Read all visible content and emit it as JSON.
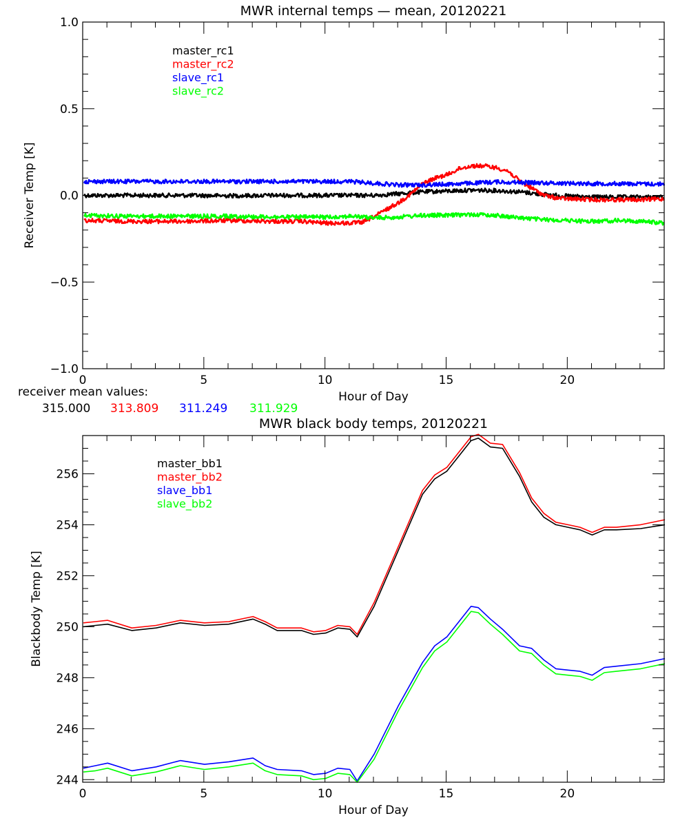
{
  "chart_data": [
    {
      "type": "line",
      "title": "MWR internal temps — mean, 20120221",
      "xlabel": "Hour of Day",
      "ylabel": "Receiver Temp [K]",
      "xlim": [
        0,
        24
      ],
      "ylim": [
        -1.0,
        1.0
      ],
      "xticks": [
        0,
        5,
        10,
        15,
        20
      ],
      "xtick_labels": [
        "0",
        "5",
        "10",
        "15",
        "20"
      ],
      "yticks": [
        -1.0,
        -0.5,
        0.0,
        0.5,
        1.0
      ],
      "ytick_labels": [
        "−1.0",
        "−0.5",
        "0.0",
        "0.5",
        "1.0"
      ],
      "grid": false,
      "legend_position": "top-left",
      "noisy": true,
      "series": [
        {
          "name": "master_rc1",
          "color": "#000000",
          "x": [
            0,
            2,
            4,
            6,
            8,
            10,
            11,
            12,
            13,
            14,
            15,
            16,
            17,
            18,
            19,
            20,
            21,
            22,
            23,
            24
          ],
          "y": [
            0.0,
            0.0,
            0.0,
            -0.002,
            0.0,
            0.0,
            0.0,
            0.0,
            0.01,
            0.02,
            0.025,
            0.03,
            0.028,
            0.02,
            0.005,
            -0.005,
            -0.01,
            -0.01,
            -0.01,
            -0.01
          ]
        },
        {
          "name": "master_rc2",
          "color": "#ff0000",
          "x": [
            0,
            2,
            4,
            6,
            8,
            9,
            10,
            11,
            11.5,
            12,
            12.5,
            13,
            13.5,
            14,
            14.5,
            15,
            15.5,
            16,
            16.5,
            17,
            17.5,
            18,
            18.5,
            19,
            19.5,
            20,
            21,
            22,
            23,
            24
          ],
          "y": [
            -0.145,
            -0.15,
            -0.15,
            -0.145,
            -0.15,
            -0.15,
            -0.16,
            -0.16,
            -0.155,
            -0.12,
            -0.08,
            -0.04,
            0.01,
            0.07,
            0.1,
            0.12,
            0.155,
            0.17,
            0.17,
            0.16,
            0.14,
            0.08,
            0.04,
            0.0,
            -0.015,
            -0.02,
            -0.025,
            -0.025,
            -0.025,
            -0.02
          ]
        },
        {
          "name": "slave_rc1",
          "color": "#0000ff",
          "x": [
            0,
            2,
            4,
            6,
            8,
            10,
            11,
            12,
            13,
            14,
            15,
            16,
            17,
            18,
            19,
            20,
            21,
            22,
            23,
            24
          ],
          "y": [
            0.08,
            0.08,
            0.08,
            0.08,
            0.08,
            0.08,
            0.08,
            0.07,
            0.06,
            0.06,
            0.065,
            0.07,
            0.078,
            0.075,
            0.072,
            0.07,
            0.068,
            0.068,
            0.066,
            0.065
          ]
        },
        {
          "name": "slave_rc2",
          "color": "#00ff00",
          "x": [
            0,
            2,
            4,
            6,
            8,
            10,
            11,
            12,
            13,
            14,
            15,
            16,
            17,
            18,
            19,
            20,
            21,
            22,
            23,
            24
          ],
          "y": [
            -0.115,
            -0.12,
            -0.12,
            -0.12,
            -0.125,
            -0.125,
            -0.12,
            -0.13,
            -0.125,
            -0.115,
            -0.115,
            -0.11,
            -0.115,
            -0.13,
            -0.14,
            -0.145,
            -0.15,
            -0.145,
            -0.15,
            -0.16
          ]
        }
      ],
      "annotation": {
        "label": "receiver mean values:",
        "values": [
          {
            "text": "315.000",
            "color": "#000000"
          },
          {
            "text": "313.809",
            "color": "#ff0000"
          },
          {
            "text": "311.249",
            "color": "#0000ff"
          },
          {
            "text": "311.929",
            "color": "#00ff00"
          }
        ]
      }
    },
    {
      "type": "line",
      "title": "MWR black body temps, 20120221",
      "xlabel": "Hour of Day",
      "ylabel": "Blackbody Temp [K]",
      "xlim": [
        0,
        24
      ],
      "ylim": [
        243.9,
        257.5
      ],
      "xticks": [
        0,
        5,
        10,
        15,
        20
      ],
      "xtick_labels": [
        "0",
        "5",
        "10",
        "15",
        "20"
      ],
      "yticks": [
        244,
        246,
        248,
        250,
        252,
        254,
        256
      ],
      "ytick_labels": [
        "244",
        "246",
        "248",
        "250",
        "252",
        "254",
        "256"
      ],
      "grid": false,
      "legend_position": "top-left",
      "noisy": false,
      "series": [
        {
          "name": "master_bb1",
          "color": "#000000",
          "x": [
            0,
            0.5,
            1,
            2,
            3,
            4,
            5,
            6,
            7,
            7.5,
            8,
            9,
            9.5,
            10,
            10.5,
            11,
            11.3,
            12,
            13,
            14,
            14.5,
            15,
            15.5,
            16,
            16.3,
            16.8,
            17.3,
            18,
            18.5,
            19,
            19.5,
            20,
            20.5,
            21,
            21.5,
            22,
            23,
            24
          ],
          "y": [
            250.0,
            250.05,
            250.1,
            249.85,
            249.95,
            250.15,
            250.05,
            250.1,
            250.3,
            250.1,
            249.85,
            249.85,
            249.7,
            249.75,
            249.95,
            249.9,
            249.6,
            250.8,
            253.0,
            255.2,
            255.8,
            256.1,
            256.7,
            257.3,
            257.4,
            257.05,
            257.0,
            255.9,
            254.9,
            254.3,
            254.0,
            253.9,
            253.8,
            253.6,
            253.8,
            253.8,
            253.85,
            254.0
          ]
        },
        {
          "name": "master_bb2",
          "color": "#ff0000",
          "x": [
            0,
            0.5,
            1,
            2,
            3,
            4,
            5,
            6,
            7,
            7.5,
            8,
            9,
            9.5,
            10,
            10.5,
            11,
            11.3,
            12,
            13,
            14,
            14.5,
            15,
            15.5,
            16,
            16.3,
            16.8,
            17.3,
            18,
            18.5,
            19,
            19.5,
            20,
            20.5,
            21,
            21.5,
            22,
            23,
            24
          ],
          "y": [
            250.15,
            250.2,
            250.25,
            249.95,
            250.05,
            250.25,
            250.15,
            250.2,
            250.4,
            250.2,
            249.95,
            249.95,
            249.8,
            249.85,
            250.05,
            250.0,
            249.7,
            250.95,
            253.15,
            255.35,
            255.95,
            256.25,
            256.85,
            257.45,
            257.55,
            257.2,
            257.15,
            256.05,
            255.05,
            254.45,
            254.1,
            254.0,
            253.9,
            253.7,
            253.9,
            253.9,
            254.0,
            254.2
          ]
        },
        {
          "name": "slave_bb1",
          "color": "#0000ff",
          "x": [
            0,
            0.5,
            1,
            2,
            3,
            4,
            5,
            6,
            7,
            7.5,
            8,
            9,
            9.5,
            10,
            10.5,
            11,
            11.3,
            12,
            13,
            14,
            14.5,
            15,
            15.5,
            16,
            16.3,
            16.8,
            17.3,
            18,
            18.5,
            19,
            19.5,
            20,
            20.5,
            21,
            21.5,
            22,
            23,
            24
          ],
          "y": [
            244.45,
            244.55,
            244.65,
            244.35,
            244.5,
            244.75,
            244.6,
            244.7,
            244.85,
            244.55,
            244.4,
            244.35,
            244.2,
            244.25,
            244.45,
            244.4,
            243.95,
            245.0,
            246.9,
            248.6,
            249.25,
            249.6,
            250.2,
            250.8,
            250.75,
            250.3,
            249.9,
            249.25,
            249.15,
            248.7,
            248.35,
            248.3,
            248.25,
            248.1,
            248.4,
            248.45,
            248.55,
            248.75
          ]
        },
        {
          "name": "slave_bb2",
          "color": "#00ff00",
          "x": [
            0,
            0.5,
            1,
            2,
            3,
            4,
            5,
            6,
            7,
            7.5,
            8,
            9,
            9.5,
            10,
            10.5,
            11,
            11.3,
            12,
            13,
            14,
            14.5,
            15,
            15.5,
            16,
            16.3,
            16.8,
            17.3,
            18,
            18.5,
            19,
            19.5,
            20,
            20.5,
            21,
            21.5,
            22,
            23,
            24
          ],
          "y": [
            244.3,
            244.35,
            244.45,
            244.15,
            244.3,
            244.55,
            244.4,
            244.5,
            244.65,
            244.35,
            244.2,
            244.15,
            244.0,
            244.05,
            244.25,
            244.2,
            243.9,
            244.8,
            246.7,
            248.4,
            249.05,
            249.4,
            250.0,
            250.6,
            250.55,
            250.1,
            249.7,
            249.05,
            248.95,
            248.5,
            248.15,
            248.1,
            248.05,
            247.9,
            248.2,
            248.25,
            248.35,
            248.55
          ]
        }
      ]
    }
  ]
}
